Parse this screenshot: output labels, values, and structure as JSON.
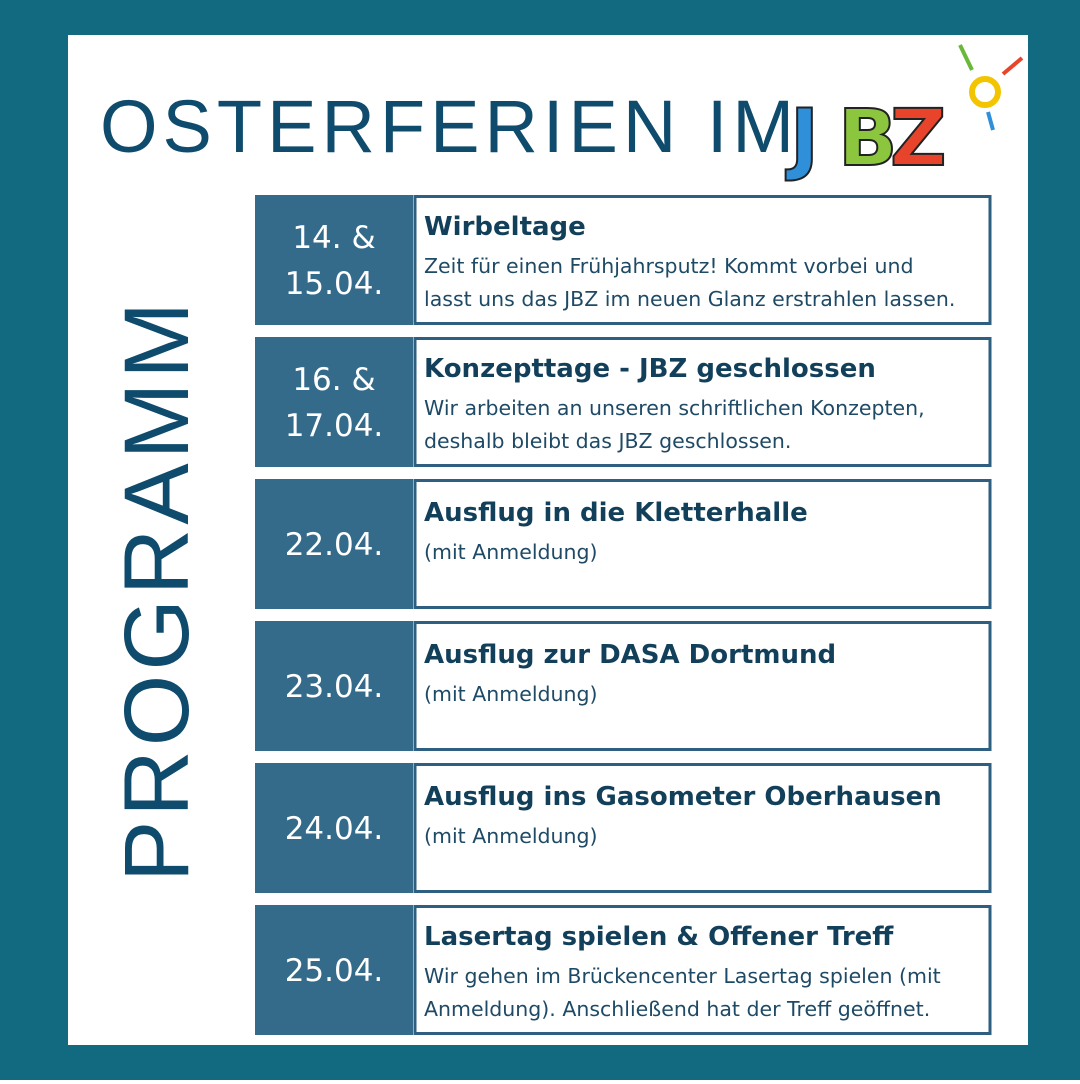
{
  "header": {
    "title": "OSTERFERIEN IM",
    "logo_letters": [
      "J",
      "B",
      "Z"
    ]
  },
  "side_label": "PROGRAMM",
  "events": [
    {
      "date_lines": [
        "14. &",
        "15.04."
      ],
      "title": "Wirbeltage",
      "description_lines": [
        "Zeit für einen Frühjahrsputz! Kommt vorbei und",
        "lasst uns das JBZ im neuen Glanz erstrahlen lassen."
      ]
    },
    {
      "date_lines": [
        "16. &",
        "17.04."
      ],
      "title": "Konzepttage - JBZ geschlossen",
      "description_lines": [
        "Wir arbeiten an unseren schriftlichen Konzepten,",
        "deshalb bleibt das JBZ geschlossen."
      ]
    },
    {
      "date_lines": [
        "22.04."
      ],
      "title": "Ausflug in die Kletterhalle",
      "description_lines": [
        "(mit Anmeldung)"
      ]
    },
    {
      "date_lines": [
        "23.04."
      ],
      "title": "Ausflug zur DASA Dortmund",
      "description_lines": [
        "(mit Anmeldung)"
      ]
    },
    {
      "date_lines": [
        "24.04."
      ],
      "title": "Ausflug ins Gasometer Oberhausen",
      "description_lines": [
        "(mit Anmeldung)"
      ]
    },
    {
      "date_lines": [
        "25.04."
      ],
      "title": "Lasertag spielen & Offener Treff",
      "description_lines": [
        "Wir gehen im Brückencenter Lasertag spielen (mit",
        "Anmeldung). Anschließend hat der Treff geöffnet."
      ]
    }
  ]
}
